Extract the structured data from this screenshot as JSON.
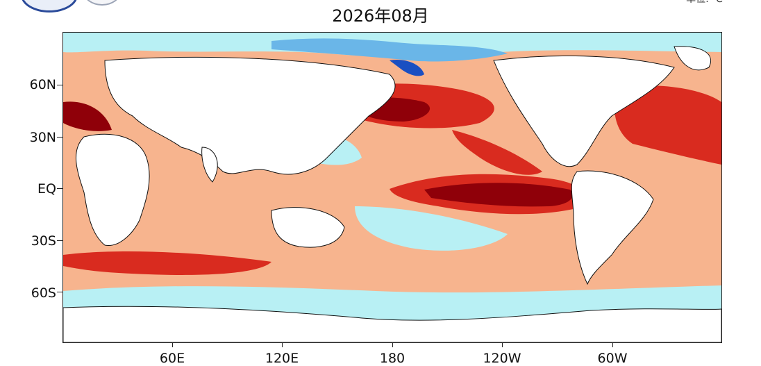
{
  "title": "2026年08月",
  "unit": "单位: ℃",
  "logos": [
    "left-agency-logo",
    "right-agency-seal"
  ],
  "map": {
    "projection": "equirectangular",
    "lon_range": [
      0,
      360
    ],
    "lat_range": [
      -90,
      90
    ],
    "field": "sea surface temperature anomaly",
    "colors": {
      "strong_warm": "#8f0009",
      "warm": "#d92b1f",
      "mild_warm": "#f06a4c",
      "slight_warm": "#f7ad86",
      "near_zero": "#b8f0f4",
      "cool": "#6ab6e8",
      "strong_cool": "#1a4fc2",
      "land": "#ffffff",
      "coastline": "#111111"
    }
  },
  "axes": {
    "y_labels": [
      "60N",
      "30N",
      "EQ",
      "30S",
      "60S"
    ],
    "x_labels": [
      "60E",
      "120E",
      "180",
      "120W",
      "60W"
    ]
  }
}
